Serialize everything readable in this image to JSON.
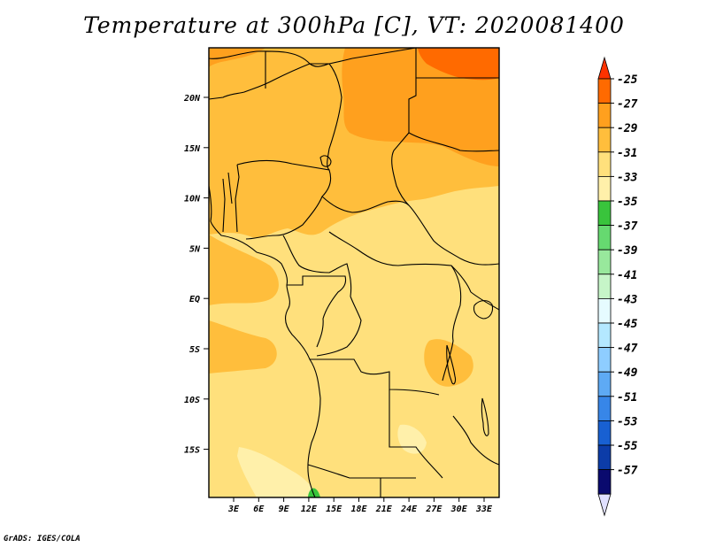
{
  "title": "Temperature at 300hPa [C], VT: 2020081400",
  "credit": "GrADS: IGES/COLA",
  "map": {
    "lat_ticks": [
      "20N",
      "15N",
      "10N",
      "5N",
      "EQ",
      "5S",
      "10S",
      "15S"
    ],
    "lon_ticks": [
      "3E",
      "6E",
      "9E",
      "12E",
      "15E",
      "18E",
      "21E",
      "24E",
      "27E",
      "30E",
      "33E"
    ]
  },
  "colorbar": {
    "labels": [
      "-25",
      "-27",
      "-29",
      "-31",
      "-33",
      "-35",
      "-37",
      "-39",
      "-41",
      "-43",
      "-45",
      "-47",
      "-49",
      "-51",
      "-53",
      "-55",
      "-57"
    ],
    "colors": [
      "#ff6a00",
      "#ffa01e",
      "#ffbe3c",
      "#ffe07c",
      "#fff0aa",
      "#39c43c",
      "#66d970",
      "#98e89c",
      "#c6f5c8",
      "#e6fbff",
      "#b4e8ff",
      "#8ecdff",
      "#5eaaf4",
      "#3786e8",
      "#1860d2",
      "#0c3ca8",
      "#0a0a6e"
    ],
    "top_arrow_color": "#ff3200",
    "bottom_arrow_color": "#e0e0ff"
  }
}
